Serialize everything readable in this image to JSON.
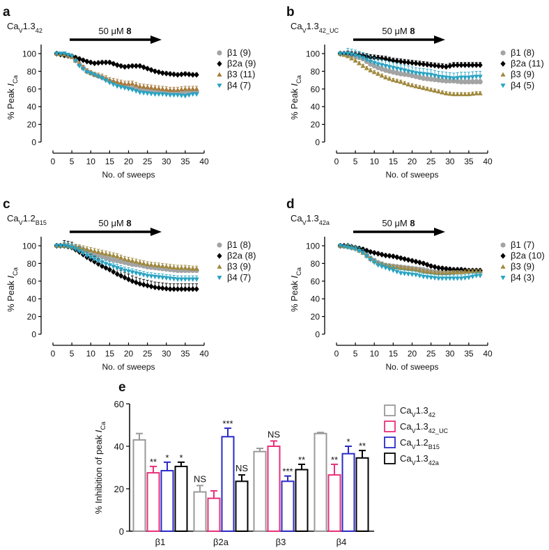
{
  "x_ticks": [
    "0",
    "5",
    "10",
    "15",
    "20",
    "25",
    "30",
    "35",
    "40"
  ],
  "y_ticks": [
    "0",
    "20",
    "40",
    "60",
    "80",
    "100"
  ],
  "xlabel": "No. of sweeps",
  "ylabel": {
    "text": "% Peak ",
    "italic": "I",
    "sub": "Ca"
  },
  "arrow_label": {
    "text": "50 μM ",
    "bold": "8"
  },
  "series_styles": [
    {
      "key": "b1",
      "marker": "circle",
      "color": "#a3a3a3"
    },
    {
      "key": "b2a",
      "marker": "diamond",
      "color": "#000000"
    },
    {
      "key": "b3",
      "marker": "triangle-up",
      "color": "#a0893e"
    },
    {
      "key": "b4",
      "marker": "triangle-down",
      "color": "#2aa3c2"
    }
  ],
  "chart_data": [
    {
      "type": "line",
      "panel": "a",
      "title": {
        "base": "Ca",
        "sub1": "V",
        "mid": "1.3",
        "sub2": "42"
      },
      "xlim": [
        0,
        40
      ],
      "ylim": [
        0,
        100
      ],
      "x": [
        1,
        3,
        5,
        7,
        9,
        11,
        13,
        15,
        17,
        19,
        21,
        23,
        25,
        27,
        29,
        31,
        33,
        35,
        37
      ],
      "series": [
        {
          "name": "β1 (9)",
          "err": 2,
          "values": [
            100,
            99,
            97,
            88,
            80,
            76,
            73,
            69,
            66,
            63,
            61,
            59,
            58,
            57,
            57,
            57,
            56,
            56,
            57
          ]
        },
        {
          "name": "β2a (9)",
          "err": 2,
          "values": [
            100,
            98,
            97,
            94,
            91,
            89,
            90,
            90,
            87,
            85,
            86,
            86,
            83,
            80,
            78,
            77,
            76,
            77,
            76
          ]
        },
        {
          "name": "β3 (11)",
          "err": 3,
          "values": [
            100,
            99,
            96,
            88,
            80,
            76,
            74,
            70,
            68,
            66,
            66,
            63,
            62,
            61,
            60,
            59,
            59,
            60,
            60
          ],
          "color": "#a87a3a"
        },
        {
          "name": "β4 (7)",
          "err": 2,
          "values": [
            100,
            100,
            97,
            86,
            79,
            76,
            72,
            67,
            63,
            61,
            59,
            56,
            55,
            54,
            54,
            53,
            53,
            52,
            54
          ]
        }
      ]
    },
    {
      "type": "line",
      "panel": "b",
      "title": {
        "base": "Ca",
        "sub1": "V",
        "mid": "1.3",
        "sub2": "42_UC"
      },
      "xlim": [
        0,
        40
      ],
      "ylim": [
        0,
        100
      ],
      "x": [
        1,
        3,
        5,
        7,
        9,
        11,
        13,
        15,
        17,
        19,
        21,
        23,
        25,
        27,
        29,
        31,
        33,
        35,
        37
      ],
      "series": [
        {
          "name": "β1 (8)",
          "err": 3,
          "values": [
            100,
            99,
            97,
            94,
            88,
            84,
            81,
            79,
            77,
            76,
            74,
            72,
            71,
            70,
            69,
            69,
            68,
            68,
            68
          ]
        },
        {
          "name": "β2a (11)",
          "err": 3,
          "values": [
            100,
            100,
            99,
            98,
            96,
            95,
            94,
            92,
            91,
            90,
            89,
            88,
            87,
            86,
            85,
            87,
            87,
            87,
            87
          ]
        },
        {
          "name": "β3 (9)",
          "err": 2,
          "values": [
            100,
            97,
            92,
            86,
            81,
            77,
            73,
            70,
            68,
            65,
            63,
            61,
            59,
            57,
            55,
            54,
            54,
            54,
            55
          ]
        },
        {
          "name": "β4 (5)",
          "err": 6,
          "values": [
            100,
            100,
            98,
            95,
            91,
            88,
            86,
            84,
            82,
            80,
            78,
            77,
            76,
            74,
            73,
            72,
            73,
            73,
            74
          ]
        }
      ]
    },
    {
      "type": "line",
      "panel": "c",
      "title": {
        "base": "Ca",
        "sub1": "V",
        "mid": "1.2",
        "sub2": "B15"
      },
      "xlim": [
        0,
        40
      ],
      "ylim": [
        0,
        100
      ],
      "x": [
        1,
        3,
        5,
        7,
        9,
        11,
        13,
        15,
        17,
        19,
        21,
        23,
        25,
        27,
        29,
        31,
        33,
        35,
        37
      ],
      "series": [
        {
          "name": "β1 (8)",
          "err": 3,
          "values": [
            100,
            100,
            99,
            97,
            94,
            90,
            88,
            85,
            83,
            81,
            79,
            78,
            76,
            75,
            74,
            73,
            72,
            72,
            72
          ]
        },
        {
          "name": "β2a (8)",
          "err": 6,
          "values": [
            100,
            100,
            98,
            93,
            87,
            82,
            77,
            73,
            68,
            64,
            60,
            57,
            55,
            53,
            52,
            51,
            51,
            51,
            51
          ]
        },
        {
          "name": "β3 (9)",
          "err": 3,
          "values": [
            100,
            100,
            99,
            98,
            96,
            94,
            92,
            90,
            88,
            85,
            83,
            81,
            79,
            78,
            77,
            76,
            75,
            75,
            74
          ]
        },
        {
          "name": "β4 (7)",
          "err": 4,
          "values": [
            100,
            100,
            98,
            94,
            89,
            85,
            81,
            78,
            75,
            72,
            70,
            68,
            66,
            65,
            64,
            63,
            62,
            62,
            62
          ]
        }
      ]
    },
    {
      "type": "line",
      "panel": "d",
      "title": {
        "base": "Ca",
        "sub1": "V",
        "mid": "1.3",
        "sub2": "42a"
      },
      "xlim": [
        0,
        40
      ],
      "ylim": [
        0,
        100
      ],
      "x": [
        1,
        3,
        5,
        7,
        9,
        11,
        13,
        15,
        17,
        19,
        21,
        23,
        25,
        27,
        29,
        31,
        33,
        35,
        37
      ],
      "series": [
        {
          "name": "β1 (7)",
          "err": 2,
          "values": [
            100,
            99,
            97,
            93,
            86,
            81,
            78,
            77,
            76,
            75,
            74,
            73,
            71,
            70,
            70,
            70,
            71,
            71,
            71
          ]
        },
        {
          "name": "β2a (10)",
          "err": 2,
          "values": [
            100,
            100,
            98,
            96,
            93,
            91,
            89,
            88,
            86,
            84,
            82,
            80,
            77,
            75,
            74,
            73,
            73,
            72,
            72
          ]
        },
        {
          "name": "β3 (9)",
          "err": 2,
          "values": [
            100,
            99,
            97,
            92,
            85,
            80,
            78,
            76,
            75,
            74,
            73,
            71,
            70,
            69,
            69,
            70,
            70,
            71,
            71
          ]
        },
        {
          "name": "β4 (3)",
          "err": 4,
          "values": [
            100,
            98,
            96,
            92,
            84,
            78,
            75,
            72,
            69,
            68,
            67,
            65,
            64,
            63,
            63,
            63,
            63,
            64,
            66
          ]
        }
      ]
    },
    {
      "type": "bar",
      "panel": "e",
      "ylabel": {
        "text": "% Inhibition of peak ",
        "italic": "I",
        "sub": "Ca"
      },
      "ylim": [
        0,
        60
      ],
      "y_ticks": [
        "0",
        "20",
        "40",
        "60"
      ],
      "categories": [
        "β1",
        "β2a",
        "β3",
        "β4"
      ],
      "series": [
        {
          "name": {
            "base": "Ca",
            "sub1": "V",
            "mid": "1.3",
            "sub2": "42"
          },
          "color": "#999999",
          "values": [
            43,
            18.5,
            37.5,
            46
          ],
          "err": [
            3,
            3,
            1.5,
            0.5
          ],
          "labels": [
            "",
            "NS",
            "",
            ""
          ]
        },
        {
          "name": {
            "base": "Ca",
            "sub1": "V",
            "mid": "1.3",
            "sub2": "42_UC"
          },
          "color": "#e8307a",
          "values": [
            27.5,
            15.5,
            40,
            26.5
          ],
          "err": [
            3,
            3.5,
            2.5,
            5
          ],
          "labels": [
            "**",
            "",
            "NS",
            "**"
          ]
        },
        {
          "name": {
            "base": "Ca",
            "sub1": "V",
            "mid": "1.2",
            "sub2": "B15"
          },
          "color": "#2a2ac8",
          "values": [
            28.5,
            44.5,
            23.5,
            36.5
          ],
          "err": [
            4,
            4,
            2.5,
            3.5
          ],
          "labels": [
            "*",
            "***",
            "***",
            "*"
          ]
        },
        {
          "name": {
            "base": "Ca",
            "sub1": "V",
            "mid": "1.3",
            "sub2": "42a"
          },
          "color": "#000000",
          "values": [
            30.5,
            23.5,
            29,
            34.5
          ],
          "err": [
            2,
            3,
            2.5,
            3.5
          ],
          "labels": [
            "*",
            "NS",
            "**",
            "**"
          ]
        }
      ]
    }
  ]
}
